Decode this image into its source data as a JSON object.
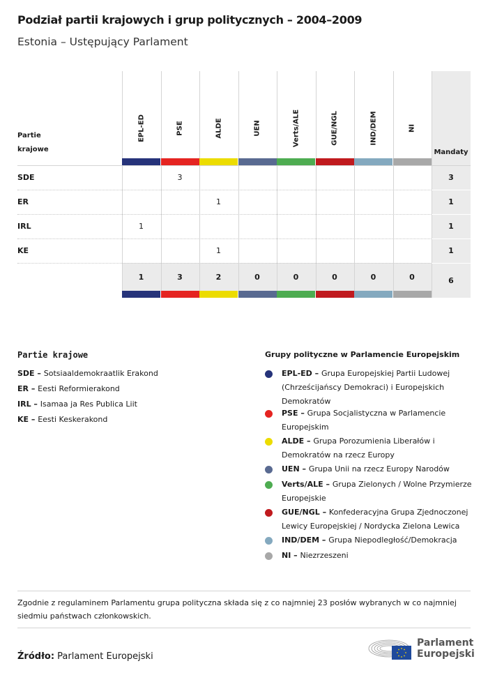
{
  "title": "Podział partii krajowych i grup politycznych – 2004–2009",
  "subtitle": "Estonia – Ustępujący Parlament",
  "table": {
    "row_header": [
      "Partie",
      "krajowe"
    ],
    "total_header": "Mandaty",
    "groups": [
      {
        "label": "EPL-ED",
        "color": "#26337a"
      },
      {
        "label": "PSE",
        "color": "#e52421"
      },
      {
        "label": "ALDE",
        "color": "#ecdc00"
      },
      {
        "label": "UEN",
        "color": "#596a91"
      },
      {
        "label": "Verts/ALE",
        "color": "#4eac51"
      },
      {
        "label": "GUE/NGL",
        "color": "#c01a1e"
      },
      {
        "label": "IND/DEM",
        "color": "#84a9bf"
      },
      {
        "label": "NI",
        "color": "#a8a8a8"
      }
    ],
    "rows": [
      {
        "party": "SDE",
        "values": [
          "",
          "3",
          "",
          "",
          "",
          "",
          "",
          ""
        ],
        "total": "3"
      },
      {
        "party": "ER",
        "values": [
          "",
          "",
          "1",
          "",
          "",
          "",
          "",
          ""
        ],
        "total": "1"
      },
      {
        "party": "IRL",
        "values": [
          "1",
          "",
          "",
          "",
          "",
          "",
          "",
          ""
        ],
        "total": "1"
      },
      {
        "party": "KE",
        "values": [
          "",
          "",
          "1",
          "",
          "",
          "",
          "",
          ""
        ],
        "total": "1"
      }
    ],
    "totals": [
      "1",
      "3",
      "2",
      "0",
      "0",
      "0",
      "0",
      "0"
    ],
    "grand_total": "6"
  },
  "parties_legend": {
    "title": "Partie krajowe",
    "items": [
      {
        "abbr": "SDE",
        "name": "Sotsiaaldemokraatlik Erakond"
      },
      {
        "abbr": "ER",
        "name": "Eesti Reformierakond"
      },
      {
        "abbr": "IRL",
        "name": "Isamaa ja Res Publica Liit"
      },
      {
        "abbr": "KE",
        "name": "Eesti Keskerakond"
      }
    ]
  },
  "groups_legend": {
    "title": "Grupy polityczne w Parlamencie Europejskim",
    "items": [
      {
        "abbr": "EPL-ED",
        "name": "Grupa Europejskiej Partii Ludowej (Chrześcijańscy Demokraci) i Europejskich Demokratów",
        "color": "#26337a"
      },
      {
        "abbr": "PSE",
        "name": "Grupa Socjalistyczna w Parlamencie Europejskim",
        "color": "#e52421"
      },
      {
        "abbr": "ALDE",
        "name": "Grupa Porozumienia Liberałów i Demokratów na rzecz Europy",
        "color": "#ecdc00"
      },
      {
        "abbr": "UEN",
        "name": "Grupa Unii na rzecz Europy Narodów",
        "color": "#596a91"
      },
      {
        "abbr": "Verts/ALE",
        "name": "Grupa Zielonych / Wolne Przymierze Europejskie",
        "color": "#4eac51"
      },
      {
        "abbr": "GUE/NGL",
        "name": "Konfederacyjna Grupa Zjednoczonej Lewicy Europejskiej / Nordycka Zielona Lewica",
        "color": "#c01a1e"
      },
      {
        "abbr": "IND/DEM",
        "name": "Grupa Niepodległość/Demokracja",
        "color": "#84a9bf"
      },
      {
        "abbr": "NI",
        "name": "Niezrzeszeni",
        "color": "#a8a8a8"
      }
    ]
  },
  "note": "Zgodnie z regulaminem Parlamentu grupa polityczna składa się z co najmniej 23 posłów wybranych w co najmniej siedmiu państwach członkowskich.",
  "source": {
    "label": "Źródło:",
    "value": "Parlament Europejski"
  },
  "logo": {
    "line1": "Parlament",
    "line2": "Europejski"
  }
}
